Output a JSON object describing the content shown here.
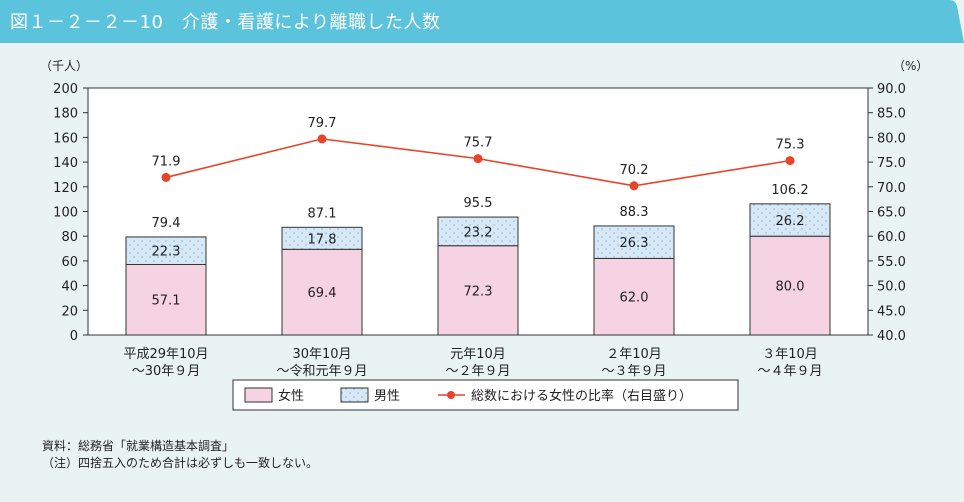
{
  "title": "図１－２－２－10　介護・看護により離職した人数",
  "colors": {
    "header": "#5bc3dc",
    "female": "#f6d3e3",
    "male": "#d6e8f6",
    "line": "#e8442a",
    "background": "#e9f4f2"
  },
  "chart_data": {
    "type": "bar+line",
    "ylabel_left": "（千人）",
    "ylabel_right": "（%）",
    "ylim_left": [
      0,
      200
    ],
    "ylim_right": [
      40,
      90
    ],
    "yticks_left": [
      "0",
      "20",
      "40",
      "60",
      "80",
      "100",
      "120",
      "140",
      "160",
      "180",
      "200"
    ],
    "yticks_right": [
      "40.0",
      "45.0",
      "50.0",
      "55.0",
      "60.0",
      "65.0",
      "70.0",
      "75.0",
      "80.0",
      "85.0",
      "90.0"
    ],
    "categories": [
      [
        "平成29年10月",
        "～30年９月"
      ],
      [
        "30年10月",
        "～令和元年９月"
      ],
      [
        "元年10月",
        "～２年９月"
      ],
      [
        "２年10月",
        "～３年９月"
      ],
      [
        "３年10月",
        "～４年９月"
      ]
    ],
    "series": [
      {
        "name": "女性",
        "type": "stacked-bar",
        "values": [
          57.1,
          69.4,
          72.3,
          62.0,
          80.0
        ],
        "labels": [
          "57.1",
          "69.4",
          "72.3",
          "62.0",
          "80.0"
        ]
      },
      {
        "name": "男性",
        "type": "stacked-bar",
        "values": [
          22.3,
          17.8,
          23.2,
          26.3,
          26.2
        ],
        "labels": [
          "22.3",
          "17.8",
          "23.2",
          "26.3",
          "26.2"
        ]
      },
      {
        "name": "総数における女性の比率（右目盛り）",
        "type": "line",
        "axis": "right",
        "values": [
          71.9,
          79.7,
          75.7,
          70.2,
          75.3
        ],
        "labels": [
          "71.9",
          "79.7",
          "75.7",
          "70.2",
          "75.3"
        ]
      }
    ],
    "totals": [
      "79.4",
      "87.1",
      "95.5",
      "88.3",
      "106.2"
    ],
    "legend": "bottom",
    "grid": false
  },
  "notes": [
    "資料：総務省「就業構造基本調査」",
    "（注）四捨五入のため合計は必ずしも一致しない。"
  ]
}
